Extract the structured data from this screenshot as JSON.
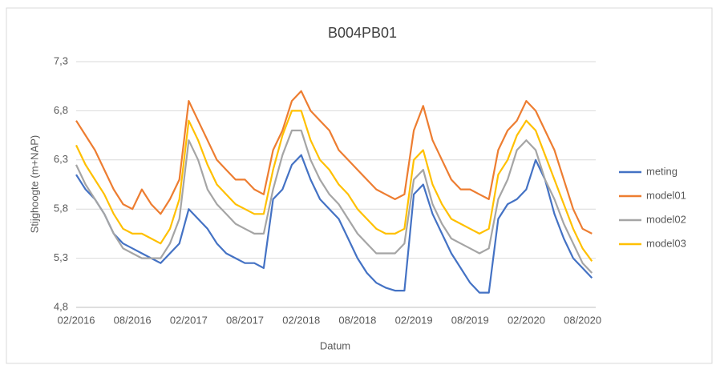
{
  "chart_data": {
    "type": "line",
    "title": "B004PB01",
    "x_label": "Datum",
    "y_label": "Stijghoogte (m+NAP)",
    "categories": [
      "02/2016",
      null,
      null,
      null,
      null,
      null,
      "08/2016",
      null,
      null,
      null,
      null,
      null,
      "02/2017",
      null,
      null,
      null,
      null,
      null,
      "08/2017",
      null,
      null,
      null,
      null,
      null,
      "02/2018",
      null,
      null,
      null,
      null,
      null,
      "08/2018",
      null,
      null,
      null,
      null,
      null,
      "02/2019",
      null,
      null,
      null,
      null,
      null,
      "08/2019",
      null,
      null,
      null,
      null,
      null,
      "02/2020",
      null,
      null,
      null,
      null,
      null,
      "08/2020",
      null
    ],
    "ylim": [
      4.8,
      7.3
    ],
    "yticks": [
      {
        "value": 4.8,
        "label": "4,8"
      },
      {
        "value": 5.3,
        "label": "5,3"
      },
      {
        "value": 5.8,
        "label": "5,8"
      },
      {
        "value": 6.3,
        "label": "6,3"
      },
      {
        "value": 6.8,
        "label": "6,8"
      },
      {
        "value": 7.3,
        "label": "7,3"
      }
    ],
    "grid": true,
    "legend": "right",
    "series": [
      {
        "name": "meting",
        "color": "#4472c4",
        "values": [
          6.15,
          6.0,
          5.9,
          5.75,
          5.55,
          5.45,
          5.4,
          5.35,
          5.3,
          5.25,
          5.35,
          5.45,
          5.8,
          5.7,
          5.6,
          5.45,
          5.35,
          5.3,
          5.25,
          5.25,
          5.2,
          5.9,
          6.0,
          6.25,
          6.35,
          6.1,
          5.9,
          5.8,
          5.7,
          5.5,
          5.3,
          5.15,
          5.05,
          5.0,
          4.97,
          4.97,
          5.95,
          6.05,
          5.75,
          5.55,
          5.35,
          5.2,
          5.05,
          4.95,
          4.95,
          5.7,
          5.85,
          5.9,
          6.0,
          6.3,
          6.1,
          5.75,
          5.5,
          5.3,
          5.2,
          5.1
        ]
      },
      {
        "name": "model01",
        "color": "#ed7d31",
        "values": [
          6.7,
          6.55,
          6.4,
          6.2,
          6.0,
          5.85,
          5.8,
          6.0,
          5.85,
          5.75,
          5.9,
          6.1,
          6.9,
          6.7,
          6.5,
          6.3,
          6.2,
          6.1,
          6.1,
          6.0,
          5.95,
          6.4,
          6.6,
          6.9,
          7.0,
          6.8,
          6.7,
          6.6,
          6.4,
          6.3,
          6.2,
          6.1,
          6.0,
          5.95,
          5.9,
          5.95,
          6.6,
          6.85,
          6.5,
          6.3,
          6.1,
          6.0,
          6.0,
          5.95,
          5.9,
          6.4,
          6.6,
          6.7,
          6.9,
          6.8,
          6.6,
          6.4,
          6.1,
          5.8,
          5.6,
          5.55
        ]
      },
      {
        "name": "model02",
        "color": "#a5a5a5",
        "values": [
          6.25,
          6.05,
          5.9,
          5.75,
          5.55,
          5.4,
          5.35,
          5.3,
          5.3,
          5.3,
          5.45,
          5.7,
          6.5,
          6.3,
          6.0,
          5.85,
          5.75,
          5.65,
          5.6,
          5.55,
          5.55,
          6.0,
          6.35,
          6.6,
          6.6,
          6.3,
          6.1,
          5.95,
          5.85,
          5.7,
          5.55,
          5.45,
          5.35,
          5.35,
          5.35,
          5.45,
          6.1,
          6.2,
          5.85,
          5.65,
          5.5,
          5.45,
          5.4,
          5.35,
          5.4,
          5.9,
          6.1,
          6.4,
          6.5,
          6.4,
          6.1,
          5.9,
          5.65,
          5.45,
          5.25,
          5.15
        ]
      },
      {
        "name": "model03",
        "color": "#ffc000",
        "values": [
          6.45,
          6.25,
          6.1,
          5.95,
          5.75,
          5.6,
          5.55,
          5.55,
          5.5,
          5.45,
          5.6,
          5.9,
          6.7,
          6.5,
          6.25,
          6.05,
          5.95,
          5.85,
          5.8,
          5.75,
          5.75,
          6.2,
          6.55,
          6.8,
          6.8,
          6.5,
          6.3,
          6.2,
          6.05,
          5.95,
          5.8,
          5.7,
          5.6,
          5.55,
          5.55,
          5.6,
          6.3,
          6.4,
          6.05,
          5.85,
          5.7,
          5.65,
          5.6,
          5.55,
          5.6,
          6.15,
          6.3,
          6.55,
          6.7,
          6.6,
          6.35,
          6.1,
          5.85,
          5.6,
          5.4,
          5.27
        ]
      }
    ]
  }
}
